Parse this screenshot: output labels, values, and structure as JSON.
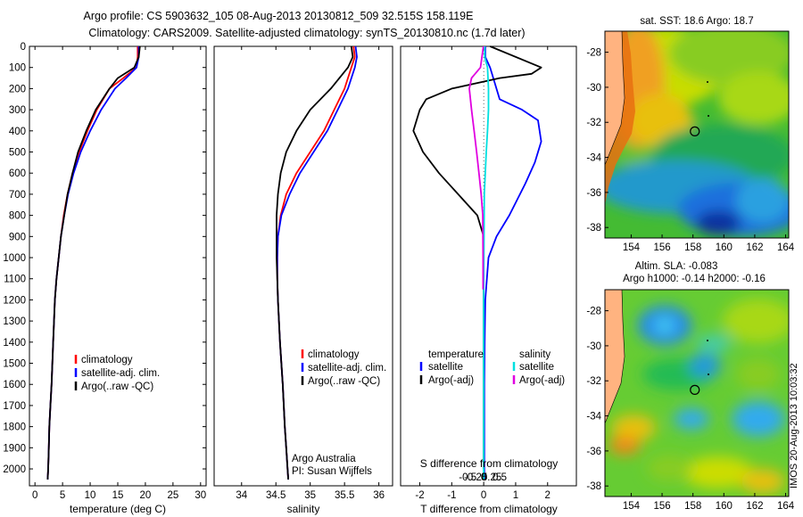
{
  "header": {
    "line1": "Argo profile: CS 5903632_105 08-Aug-2013 20130812_509 32.515S 158.119E",
    "line2": "Climatology: CARS2009. Satellite-adjusted climatology: synTS_20130810.nc (1.7d later)"
  },
  "credits": {
    "org": "Argo Australia",
    "pi": "PI: Susan Wijffels",
    "stamp": "IMOS 20-Aug-2013 10:03:32"
  },
  "colors": {
    "climatology": "#ff0000",
    "satellite": "#0000ff",
    "argo": "#000000",
    "salinity_satellite": "#00e0e0",
    "salinity_argo": "#e000e0"
  },
  "chart_data": [
    {
      "type": "line",
      "xlabel": "temperature (deg C)",
      "ylabel": "",
      "xlim": [
        -1,
        31
      ],
      "ylim": [
        2080,
        0
      ],
      "xticks": [
        0,
        5,
        10,
        15,
        20,
        25,
        30
      ],
      "yticks": [
        0,
        100,
        200,
        300,
        400,
        500,
        600,
        700,
        800,
        900,
        1000,
        1100,
        1200,
        1300,
        1400,
        1500,
        1600,
        1700,
        1800,
        1900,
        2000
      ],
      "legend": [
        "climatology",
        "satellite-adj. clim.",
        "Argo(..raw -QC)"
      ],
      "legend_placement": "lower-center",
      "series": [
        {
          "name": "climatology",
          "color": "#ff0000",
          "x": [
            18.6,
            18.6,
            18.4,
            16,
            13.5,
            11.2,
            9.5,
            8,
            6.8,
            5.9,
            5.2,
            4.7,
            4.3,
            3.9,
            3.6,
            3.3,
            3.0,
            2.8,
            2.6,
            2.5,
            2.4,
            2.3
          ],
          "y": [
            0,
            50,
            100,
            150,
            200,
            300,
            400,
            500,
            600,
            700,
            800,
            900,
            1000,
            1100,
            1200,
            1400,
            1600,
            1700,
            1800,
            1900,
            2000,
            2050
          ]
        },
        {
          "name": "satellite-adj. clim.",
          "color": "#0000ff",
          "x": [
            18.8,
            18.8,
            18.4,
            16.5,
            14.5,
            12,
            10,
            8.3,
            7,
            6,
            5.3,
            4.7,
            4.3,
            3.9,
            3.6,
            3.3,
            3.0,
            2.8,
            2.6,
            2.5,
            2.4,
            2.3
          ],
          "y": [
            0,
            50,
            100,
            150,
            200,
            300,
            400,
            500,
            600,
            700,
            800,
            900,
            1000,
            1100,
            1200,
            1400,
            1600,
            1700,
            1800,
            1900,
            2000,
            2050
          ]
        },
        {
          "name": "Argo(..raw -QC)",
          "color": "#000000",
          "x": [
            19,
            18.8,
            18,
            15,
            13.5,
            11,
            9.3,
            7.8,
            6.8,
            5.9,
            5.3,
            4.7,
            4.3,
            3.9,
            3.6,
            3.3,
            3.0,
            2.8,
            2.6,
            2.5,
            2.4,
            2.3
          ],
          "y": [
            0,
            50,
            100,
            150,
            200,
            300,
            400,
            500,
            600,
            700,
            800,
            900,
            1000,
            1100,
            1200,
            1400,
            1600,
            1700,
            1800,
            1900,
            2000,
            2050
          ]
        }
      ]
    },
    {
      "type": "line",
      "xlabel": "salinity",
      "ylabel": "",
      "xlim": [
        33.6,
        36.2
      ],
      "ylim": [
        2080,
        0
      ],
      "xticks": [
        34,
        34.5,
        35,
        35.5,
        36
      ],
      "legend": [
        "climatology",
        "satellite-adj. clim.",
        "Argo(..raw -QC)"
      ],
      "legend_placement": "lower-center",
      "series": [
        {
          "name": "climatology",
          "color": "#ff0000",
          "x": [
            35.63,
            35.65,
            35.6,
            35.5,
            35.35,
            35.2,
            35.0,
            34.8,
            34.65,
            34.57,
            34.53,
            34.52,
            34.52,
            34.53,
            34.56,
            34.6,
            34.63,
            34.65,
            34.67,
            34.68
          ],
          "y": [
            0,
            50,
            100,
            200,
            300,
            400,
            500,
            600,
            700,
            800,
            900,
            1000,
            1100,
            1200,
            1400,
            1600,
            1800,
            1900,
            2000,
            2050
          ]
        },
        {
          "name": "satellite-adj. clim.",
          "color": "#0000ff",
          "x": [
            35.66,
            35.68,
            35.65,
            35.55,
            35.4,
            35.25,
            35.05,
            34.85,
            34.7,
            34.58,
            34.53,
            34.52,
            34.52,
            34.53,
            34.56,
            34.6,
            34.63,
            34.65,
            34.67,
            34.68
          ],
          "y": [
            0,
            50,
            100,
            200,
            300,
            400,
            500,
            600,
            700,
            800,
            900,
            1000,
            1100,
            1200,
            1400,
            1600,
            1800,
            1900,
            2000,
            2050
          ]
        },
        {
          "name": "Argo(..raw -QC)",
          "color": "#000000",
          "x": [
            35.6,
            35.62,
            35.55,
            35.3,
            35.0,
            34.8,
            34.65,
            34.57,
            34.53,
            34.51,
            34.51,
            34.51,
            34.52,
            34.53,
            34.56,
            34.6,
            34.63,
            34.65,
            34.67,
            34.68
          ],
          "y": [
            0,
            50,
            100,
            200,
            300,
            400,
            500,
            600,
            700,
            800,
            900,
            1000,
            1100,
            1200,
            1400,
            1600,
            1800,
            1900,
            2000,
            2050
          ]
        }
      ]
    },
    {
      "type": "line",
      "xlabel": "T difference from climatology",
      "xlabel2": "S difference from climatology",
      "ylabel": "",
      "xlim": [
        -2.6,
        2.9
      ],
      "ylim": [
        2080,
        0
      ],
      "xticks": [
        -2,
        -1,
        0,
        1,
        2
      ],
      "xticks2_values": [
        -0.5,
        -0.25,
        0,
        0.25,
        0.5
      ],
      "xticks2_labels": [
        "-0.5",
        "-0.25",
        "0",
        "0.25",
        "0.5"
      ],
      "legend_groups": [
        {
          "title": "temperature",
          "items": [
            "satellite",
            "Argo(-adj)"
          ]
        },
        {
          "title": "salinity",
          "items": [
            "satellite",
            "Argo(-adj)"
          ]
        }
      ],
      "series": [
        {
          "name": "satellite",
          "group": "temperature",
          "color": "#0000ff",
          "x": [
            0.05,
            0.05,
            0.2,
            0.3,
            0.5,
            1.2,
            1.7,
            1.8,
            1.6,
            1.3,
            0.8,
            0.4,
            0.15,
            0.05,
            0.03,
            0.02,
            0.02,
            0.02
          ],
          "y": [
            0,
            50,
            100,
            150,
            250,
            300,
            350,
            450,
            550,
            650,
            800,
            900,
            1000,
            1200,
            1400,
            1600,
            1800,
            2050
          ]
        },
        {
          "name": "Argo(-adj)",
          "group": "temperature",
          "color": "#000000",
          "x": [
            0.2,
            1.8,
            1.5,
            0.5,
            -1.0,
            -1.8,
            -2.0,
            -2.2,
            -1.9,
            -1.4,
            -0.8,
            -0.2,
            0.0,
            0.0,
            0.0,
            0.0,
            0.0,
            0.0
          ],
          "y": [
            0,
            100,
            130,
            150,
            200,
            250,
            300,
            400,
            500,
            600,
            700,
            800,
            900,
            1000,
            1200,
            1500,
            1800,
            2000
          ]
        },
        {
          "name": "satellite",
          "group": "salinity",
          "color": "#00e0e0",
          "x": [
            0.03,
            0.03,
            0.12,
            0.15,
            0.15,
            0.12,
            0.08,
            0.05,
            0.02,
            0.01,
            0.0,
            0.0,
            0.0
          ],
          "y": [
            0,
            50,
            100,
            200,
            300,
            400,
            500,
            600,
            700,
            900,
            1200,
            1600,
            2050
          ]
        },
        {
          "name": "Argo(-adj)",
          "group": "salinity",
          "color": "#e000e0",
          "x": [
            -0.01,
            -0.1,
            -0.38,
            -0.45,
            -0.38,
            -0.3,
            -0.22,
            -0.15,
            -0.08,
            -0.03,
            -0.02,
            -0.02
          ],
          "y": [
            0,
            100,
            150,
            200,
            300,
            400,
            500,
            600,
            700,
            800,
            1000,
            1150
          ]
        }
      ]
    },
    {
      "type": "heatmap",
      "title": "sat. SST: 18.6 Argo: 18.7",
      "xlim": [
        152.3,
        164.2
      ],
      "ylim": [
        -38.6,
        -26.8
      ],
      "xticks": [
        154,
        156,
        158,
        160,
        162,
        164
      ],
      "yticks": [
        -28,
        -30,
        -32,
        -34,
        -36,
        -38
      ],
      "marker": {
        "lon": 158.119,
        "lat": -32.515
      }
    },
    {
      "type": "heatmap",
      "title": "Altim. SLA: -0.083",
      "subtitle": "Argo h1000: -0.14 h2000: -0.16",
      "xlim": [
        152.3,
        164.2
      ],
      "ylim": [
        -38.6,
        -26.8
      ],
      "xticks": [
        154,
        156,
        158,
        160,
        162,
        164
      ],
      "yticks": [
        -28,
        -30,
        -32,
        -34,
        -36,
        -38
      ],
      "marker": {
        "lon": 158.119,
        "lat": -32.515
      }
    }
  ]
}
